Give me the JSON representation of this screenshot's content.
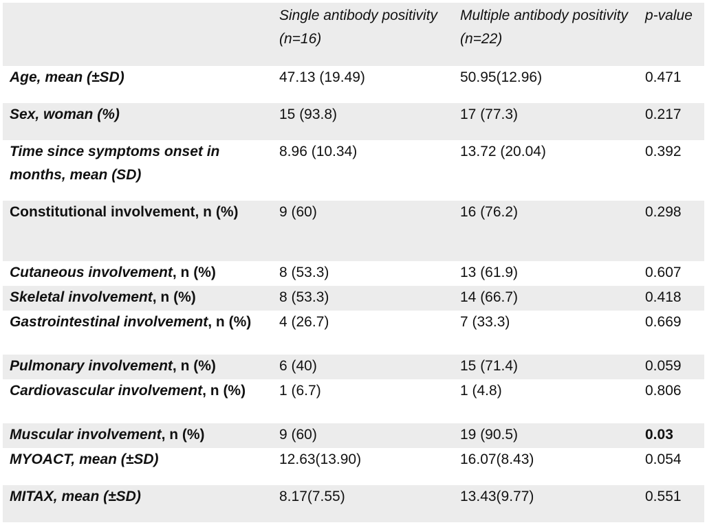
{
  "table": {
    "headers": [
      "",
      "Single antibody positivity (n=16)",
      "Multiple antibody positivity (n=22)",
      "p-value"
    ],
    "rows": [
      {
        "label_italic": "Age, mean (±SD)",
        "label_plain": "",
        "single": "47.13 (19.49)",
        "multiple": "50.95(12.96)",
        "p": "0.471"
      },
      {
        "label_italic": "Sex, woman (%)",
        "label_plain": "",
        "single": "15 (93.8)",
        "multiple": "17 (77.3)",
        "p": "0.217"
      },
      {
        "label_italic": "Time since symptoms onset in months, mean (SD)",
        "label_plain": "",
        "single": "8.96 (10.34)",
        "multiple": "13.72 (20.04)",
        "p": "0.392"
      },
      {
        "label_italic": "",
        "label_plain": "Constitutional involvement, n (%)",
        "single": "9 (60)",
        "multiple": "16 (76.2)",
        "p": "0.298"
      },
      {
        "label_italic": "Cutaneous involvement",
        "label_plain": ", n (%)",
        "single": "8 (53.3)",
        "multiple": "13 (61.9)",
        "p": "0.607"
      },
      {
        "label_italic": "Skeletal involvement",
        "label_plain": ", n (%)",
        "single": "8 (53.3)",
        "multiple": "14 (66.7)",
        "p": "0.418"
      },
      {
        "label_italic": "Gastrointestinal involvement",
        "label_plain": ", n (%)",
        "single": "4 (26.7)",
        "multiple": "7 (33.3)",
        "p": "0.669"
      },
      {
        "label_italic": "Pulmonary involvement",
        "label_plain": ", n (%)",
        "single": "6 (40)",
        "multiple": "15 (71.4)",
        "p": "0.059"
      },
      {
        "label_italic": "Cardiovascular involvement",
        "label_plain": ", n (%)",
        "single": "1 (6.7)",
        "multiple": "1 (4.8)",
        "p": "0.806"
      },
      {
        "label_italic": "Muscular involvement",
        "label_plain": ", n (%)",
        "single": "9 (60)",
        "multiple": "19 (90.5)",
        "p": "0.03"
      },
      {
        "label_italic": "MYOACT,  mean (±SD)",
        "label_plain": "",
        "single": "12.63(13.90)",
        "multiple": "16.07(8.43)",
        "p": "0.054"
      },
      {
        "label_italic": "MITAX,  mean (±SD)",
        "label_plain": "",
        "single": "8.17(7.55)",
        "multiple": "13.43(9.77)",
        "p": "0.551"
      }
    ]
  }
}
